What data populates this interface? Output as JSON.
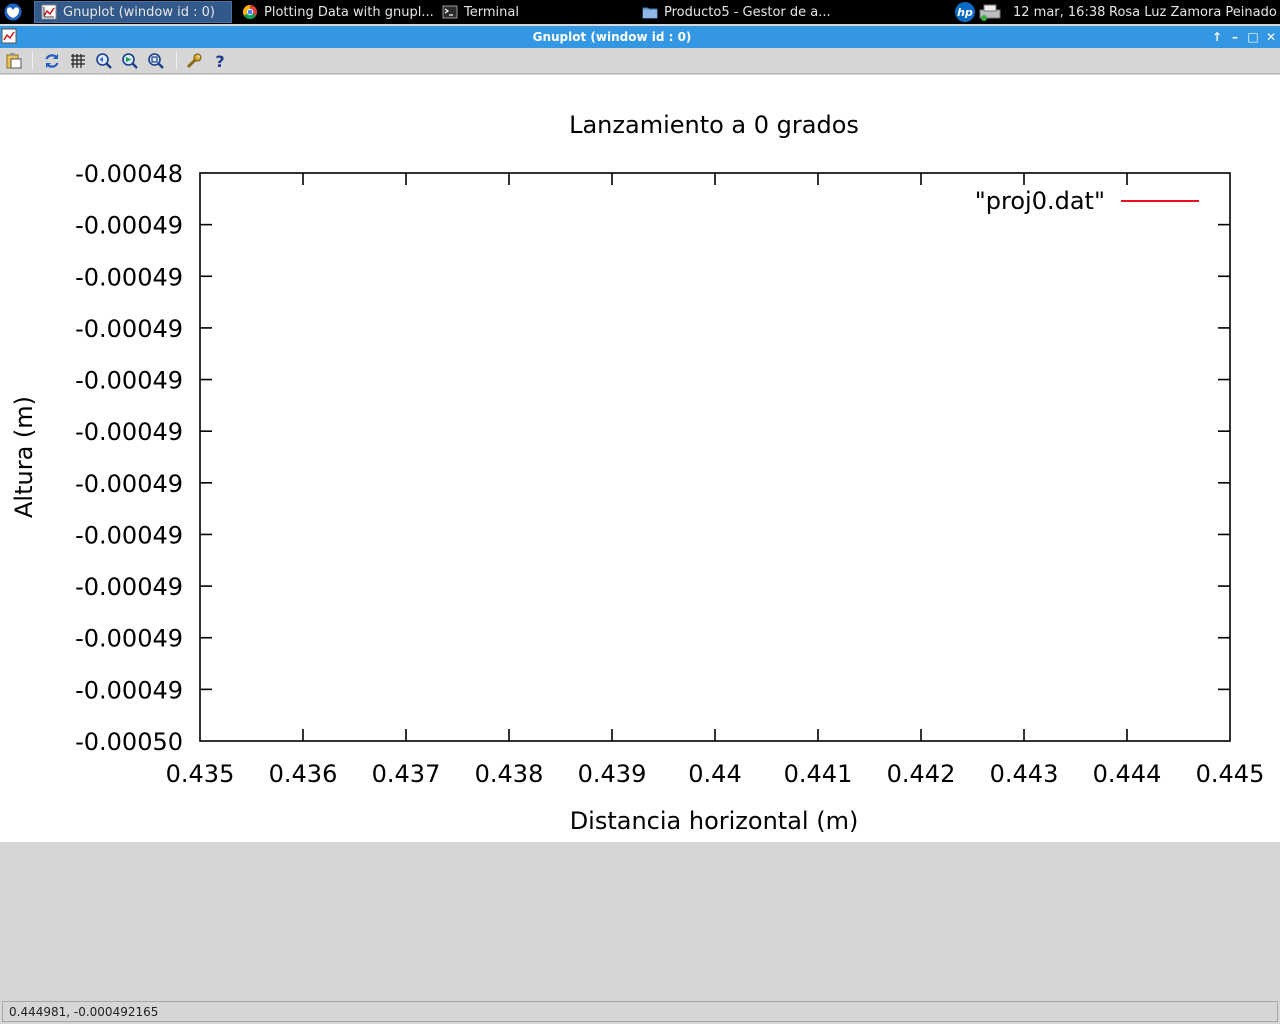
{
  "taskbar": {
    "tasks": [
      {
        "label": "Gnuplot (window id : 0)",
        "icon": "gnuplot-icon",
        "active": true
      },
      {
        "label": "Plotting Data with gnupl...",
        "icon": "chrome-icon",
        "active": false
      },
      {
        "label": "Terminal",
        "icon": "terminal-icon",
        "active": false
      },
      {
        "label": "Producto5 - Gestor de a...",
        "icon": "folder-icon",
        "active": false
      }
    ],
    "clock": "12 mar, 16:38",
    "user": "Rosa Luz Zamora Peinado"
  },
  "window": {
    "title": "Gnuplot (window id : 0)",
    "buttons": {
      "up": "↑",
      "minimize": "–",
      "maximize": "□",
      "close": "✕"
    }
  },
  "toolbar": {
    "items": [
      "copy-clipboard-icon",
      "replot-icon",
      "grid-icon",
      "zoom-previous-icon",
      "zoom-next-icon",
      "autoscale-icon",
      "config-icon",
      "help-icon"
    ]
  },
  "chart_data": {
    "type": "line",
    "title": "Lanzamiento a 0 grados",
    "xlabel": "Distancia horizontal (m)",
    "ylabel": "Altura (m)",
    "xlim": [
      0.435,
      0.445
    ],
    "ylim": [
      -0.0005,
      -0.00048
    ],
    "xticks": [
      "0.435",
      "0.436",
      "0.437",
      "0.438",
      "0.439",
      "0.44",
      "0.441",
      "0.442",
      "0.443",
      "0.444",
      "0.445"
    ],
    "yticks": [
      "-0.00048",
      "-0.00049",
      "-0.00049",
      "-0.00049",
      "-0.00049",
      "-0.00049",
      "-0.00049",
      "-0.00049",
      "-0.00049",
      "-0.00049",
      "-0.00049",
      "-0.00050"
    ],
    "grid": false,
    "legend_position": "top-right",
    "series": [
      {
        "name": "\"proj0.dat\"",
        "color": "#e8101a",
        "points": []
      }
    ]
  },
  "statusbar": {
    "text": "0.444981, -0.000492165"
  }
}
